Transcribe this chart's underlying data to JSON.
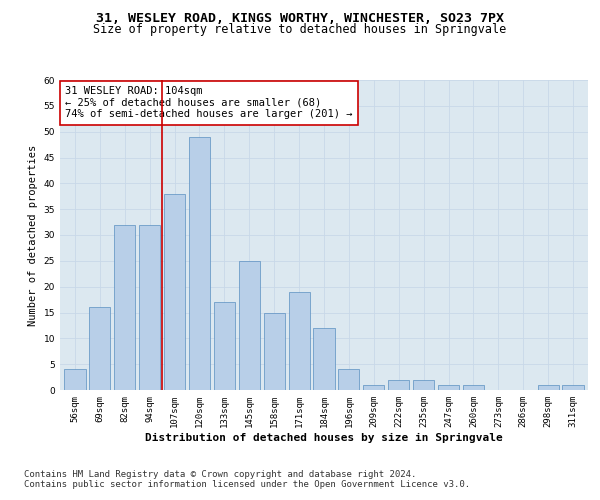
{
  "title_line1": "31, WESLEY ROAD, KINGS WORTHY, WINCHESTER, SO23 7PX",
  "title_line2": "Size of property relative to detached houses in Springvale",
  "xlabel": "Distribution of detached houses by size in Springvale",
  "ylabel": "Number of detached properties",
  "categories": [
    "56sqm",
    "69sqm",
    "82sqm",
    "94sqm",
    "107sqm",
    "120sqm",
    "133sqm",
    "145sqm",
    "158sqm",
    "171sqm",
    "184sqm",
    "196sqm",
    "209sqm",
    "222sqm",
    "235sqm",
    "247sqm",
    "260sqm",
    "273sqm",
    "286sqm",
    "298sqm",
    "311sqm"
  ],
  "values": [
    4,
    16,
    32,
    32,
    38,
    49,
    17,
    25,
    15,
    19,
    12,
    4,
    1,
    2,
    2,
    1,
    1,
    0,
    0,
    1,
    1
  ],
  "bar_color": "#b8cfe8",
  "bar_edgecolor": "#5a8fc0",
  "vline_color": "#cc0000",
  "vline_x_index": 4,
  "annotation_text": "31 WESLEY ROAD: 104sqm\n← 25% of detached houses are smaller (68)\n74% of semi-detached houses are larger (201) →",
  "annotation_box_color": "#cc0000",
  "ylim": [
    0,
    60
  ],
  "yticks": [
    0,
    5,
    10,
    15,
    20,
    25,
    30,
    35,
    40,
    45,
    50,
    55,
    60
  ],
  "grid_color": "#c8d8e8",
  "background_color": "#dce8f0",
  "footer_line1": "Contains HM Land Registry data © Crown copyright and database right 2024.",
  "footer_line2": "Contains public sector information licensed under the Open Government Licence v3.0.",
  "title_fontsize": 9.5,
  "subtitle_fontsize": 8.5,
  "ylabel_fontsize": 7.5,
  "xlabel_fontsize": 8,
  "tick_fontsize": 6.5,
  "annotation_fontsize": 7.5,
  "footer_fontsize": 6.5
}
